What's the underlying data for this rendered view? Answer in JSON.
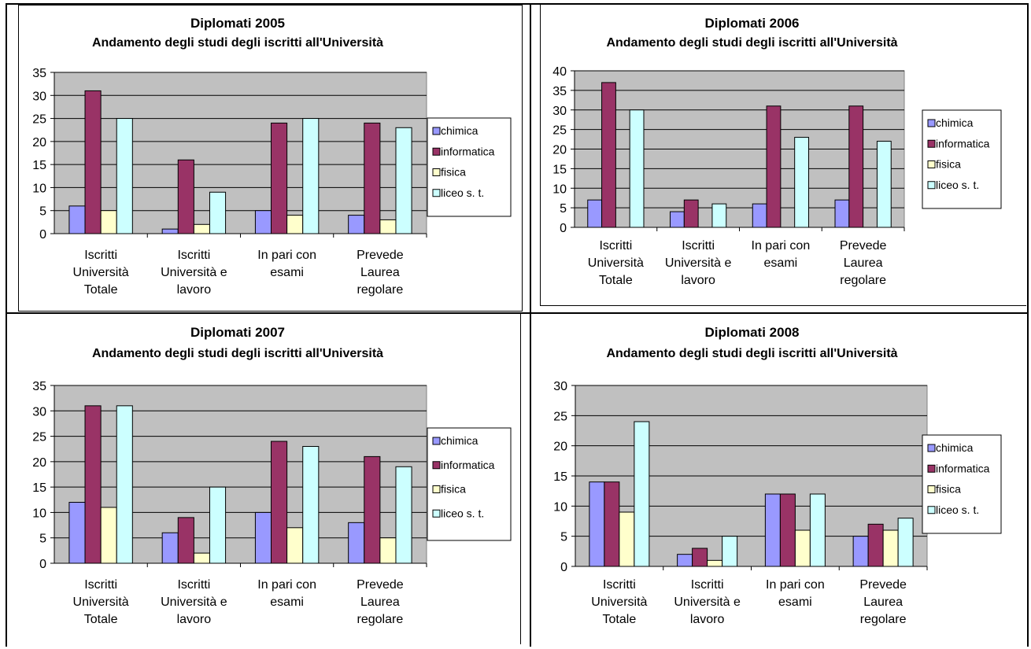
{
  "colors": {
    "chimica": "#9999ff",
    "informatica": "#993366",
    "fisica": "#ffffcc",
    "liceo": "#ccffff",
    "plot_bg": "#c0c0c0"
  },
  "chart_data": [
    {
      "type": "bar",
      "title": "Diplomati 2005",
      "subtitle": "Andamento degli studi degli iscritti all'Università",
      "categories": [
        [
          "Iscritti",
          "Università",
          "Totale"
        ],
        [
          "Iscritti",
          "Università e",
          "lavoro"
        ],
        [
          "In pari con",
          "esami"
        ],
        [
          "Prevede",
          "Laurea",
          "regolare"
        ]
      ],
      "series": [
        {
          "name": "chimica",
          "values": [
            6,
            1,
            5,
            4
          ]
        },
        {
          "name": "informatica",
          "values": [
            31,
            16,
            24,
            24
          ]
        },
        {
          "name": "fisica",
          "values": [
            5,
            2,
            4,
            3
          ]
        },
        {
          "name": "liceo s. t.",
          "values": [
            25,
            9,
            25,
            23
          ]
        }
      ],
      "ylim": [
        0,
        35
      ],
      "yticks": [
        0,
        5,
        10,
        15,
        20,
        25,
        30,
        35
      ],
      "grid": true,
      "legend": "right"
    },
    {
      "type": "bar",
      "title": "Diplomati 2006",
      "subtitle": "Andamento degli studi degli iscritti all'Università",
      "categories": [
        [
          "Iscritti",
          "Università",
          "Totale"
        ],
        [
          "Iscritti",
          "Università e",
          "lavoro"
        ],
        [
          "In pari con",
          "esami"
        ],
        [
          "Prevede",
          "Laurea",
          "regolare"
        ]
      ],
      "series": [
        {
          "name": "chimica",
          "values": [
            7,
            4,
            6,
            7
          ]
        },
        {
          "name": "informatica",
          "values": [
            37,
            7,
            31,
            31
          ]
        },
        {
          "name": "fisica",
          "values": [
            0,
            0,
            0,
            0
          ]
        },
        {
          "name": "liceo s. t.",
          "values": [
            30,
            6,
            23,
            22
          ]
        }
      ],
      "ylim": [
        0,
        40
      ],
      "yticks": [
        0,
        5,
        10,
        15,
        20,
        25,
        30,
        35,
        40
      ],
      "grid": true,
      "legend": "right"
    },
    {
      "type": "bar",
      "title": "Diplomati 2007",
      "subtitle": "Andamento degli studi degli iscritti all'Università",
      "categories": [
        [
          "Iscritti",
          "Università",
          "Totale"
        ],
        [
          "Iscritti",
          "Università e",
          "lavoro"
        ],
        [
          "In pari con",
          "esami"
        ],
        [
          "Prevede",
          "Laurea",
          "regolare"
        ]
      ],
      "series": [
        {
          "name": "chimica",
          "values": [
            12,
            6,
            10,
            8
          ]
        },
        {
          "name": "informatica",
          "values": [
            31,
            9,
            24,
            21
          ]
        },
        {
          "name": "fisica",
          "values": [
            11,
            2,
            7,
            5
          ]
        },
        {
          "name": "liceo s. t.",
          "values": [
            31,
            15,
            23,
            19
          ]
        }
      ],
      "ylim": [
        0,
        35
      ],
      "yticks": [
        0,
        5,
        10,
        15,
        20,
        25,
        30,
        35
      ],
      "grid": true,
      "legend": "right"
    },
    {
      "type": "bar",
      "title": "Diplomati 2008",
      "subtitle": "Andamento degli studi degli iscritti all'Università",
      "categories": [
        [
          "Iscritti",
          "Università",
          "Totale"
        ],
        [
          "Iscritti",
          "Università e",
          "lavoro"
        ],
        [
          "In pari con",
          "esami"
        ],
        [
          "Prevede",
          "Laurea",
          "regolare"
        ]
      ],
      "series": [
        {
          "name": "chimica",
          "values": [
            14,
            2,
            12,
            5
          ]
        },
        {
          "name": "informatica",
          "values": [
            14,
            3,
            12,
            7
          ]
        },
        {
          "name": "fisica",
          "values": [
            9,
            1,
            6,
            6
          ]
        },
        {
          "name": "liceo s. t.",
          "values": [
            24,
            5,
            12,
            8
          ]
        }
      ],
      "ylim": [
        0,
        30
      ],
      "yticks": [
        0,
        5,
        10,
        15,
        20,
        25,
        30
      ],
      "grid": true,
      "legend": "right"
    }
  ]
}
